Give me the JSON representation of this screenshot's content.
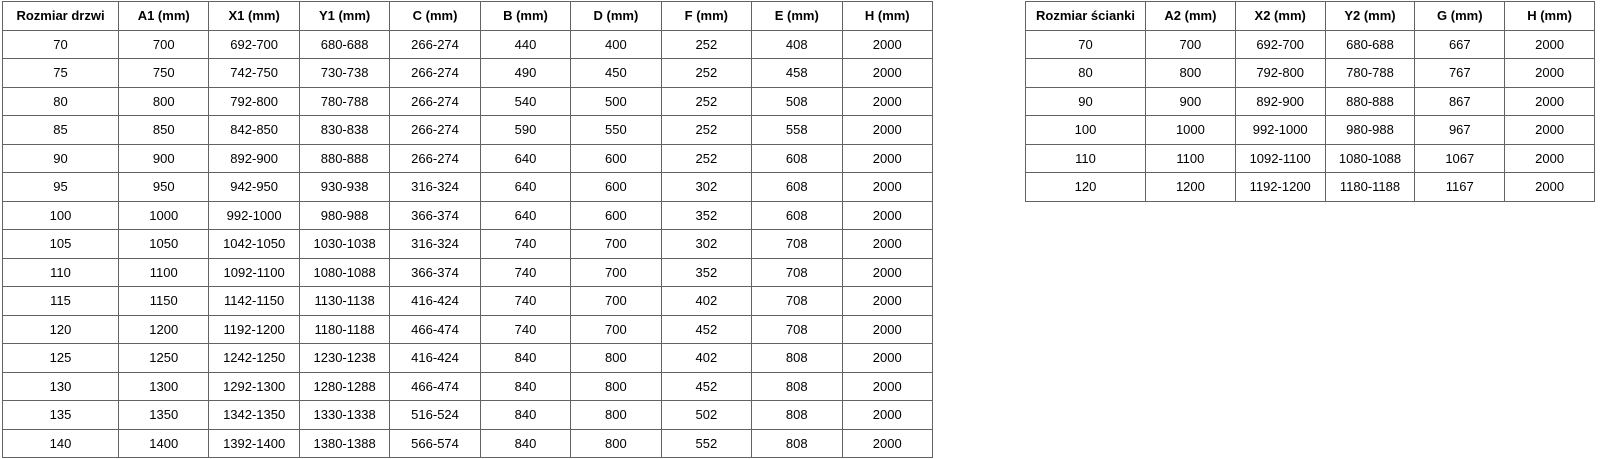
{
  "page": {
    "background_color": "#ffffff",
    "border_color": "#636363",
    "text_color": "#000000"
  },
  "tables": [
    {
      "id": "door-table",
      "name": "door-size-table",
      "headers": [
        "Rozmiar drzwi",
        "A1 (mm)",
        "X1 (mm)",
        "Y1 (mm)",
        "C (mm)",
        "B (mm)",
        "D (mm)",
        "F (mm)",
        "E (mm)",
        "H (mm)"
      ],
      "rows": [
        [
          "70",
          "700",
          "692-700",
          "680-688",
          "266-274",
          "440",
          "400",
          "252",
          "408",
          "2000"
        ],
        [
          "75",
          "750",
          "742-750",
          "730-738",
          "266-274",
          "490",
          "450",
          "252",
          "458",
          "2000"
        ],
        [
          "80",
          "800",
          "792-800",
          "780-788",
          "266-274",
          "540",
          "500",
          "252",
          "508",
          "2000"
        ],
        [
          "85",
          "850",
          "842-850",
          "830-838",
          "266-274",
          "590",
          "550",
          "252",
          "558",
          "2000"
        ],
        [
          "90",
          "900",
          "892-900",
          "880-888",
          "266-274",
          "640",
          "600",
          "252",
          "608",
          "2000"
        ],
        [
          "95",
          "950",
          "942-950",
          "930-938",
          "316-324",
          "640",
          "600",
          "302",
          "608",
          "2000"
        ],
        [
          "100",
          "1000",
          "992-1000",
          "980-988",
          "366-374",
          "640",
          "600",
          "352",
          "608",
          "2000"
        ],
        [
          "105",
          "1050",
          "1042-1050",
          "1030-1038",
          "316-324",
          "740",
          "700",
          "302",
          "708",
          "2000"
        ],
        [
          "110",
          "1100",
          "1092-1100",
          "1080-1088",
          "366-374",
          "740",
          "700",
          "352",
          "708",
          "2000"
        ],
        [
          "115",
          "1150",
          "1142-1150",
          "1130-1138",
          "416-424",
          "740",
          "700",
          "402",
          "708",
          "2000"
        ],
        [
          "120",
          "1200",
          "1192-1200",
          "1180-1188",
          "466-474",
          "740",
          "700",
          "452",
          "708",
          "2000"
        ],
        [
          "125",
          "1250",
          "1242-1250",
          "1230-1238",
          "416-424",
          "840",
          "800",
          "402",
          "808",
          "2000"
        ],
        [
          "130",
          "1300",
          "1292-1300",
          "1280-1288",
          "466-474",
          "840",
          "800",
          "452",
          "808",
          "2000"
        ],
        [
          "135",
          "1350",
          "1342-1350",
          "1330-1338",
          "516-524",
          "840",
          "800",
          "502",
          "808",
          "2000"
        ],
        [
          "140",
          "1400",
          "1392-1400",
          "1380-1388",
          "566-574",
          "840",
          "800",
          "552",
          "808",
          "2000"
        ]
      ]
    },
    {
      "id": "wall-table",
      "name": "wall-size-table",
      "headers": [
        "Rozmiar ścianki",
        "A2 (mm)",
        "X2 (mm)",
        "Y2 (mm)",
        "G (mm)",
        "H (mm)"
      ],
      "rows": [
        [
          "70",
          "700",
          "692-700",
          "680-688",
          "667",
          "2000"
        ],
        [
          "80",
          "800",
          "792-800",
          "780-788",
          "767",
          "2000"
        ],
        [
          "90",
          "900",
          "892-900",
          "880-888",
          "867",
          "2000"
        ],
        [
          "100",
          "1000",
          "992-1000",
          "980-988",
          "967",
          "2000"
        ],
        [
          "110",
          "1100",
          "1092-1100",
          "1080-1088",
          "1067",
          "2000"
        ],
        [
          "120",
          "1200",
          "1192-1200",
          "1180-1188",
          "1167",
          "2000"
        ]
      ]
    }
  ]
}
